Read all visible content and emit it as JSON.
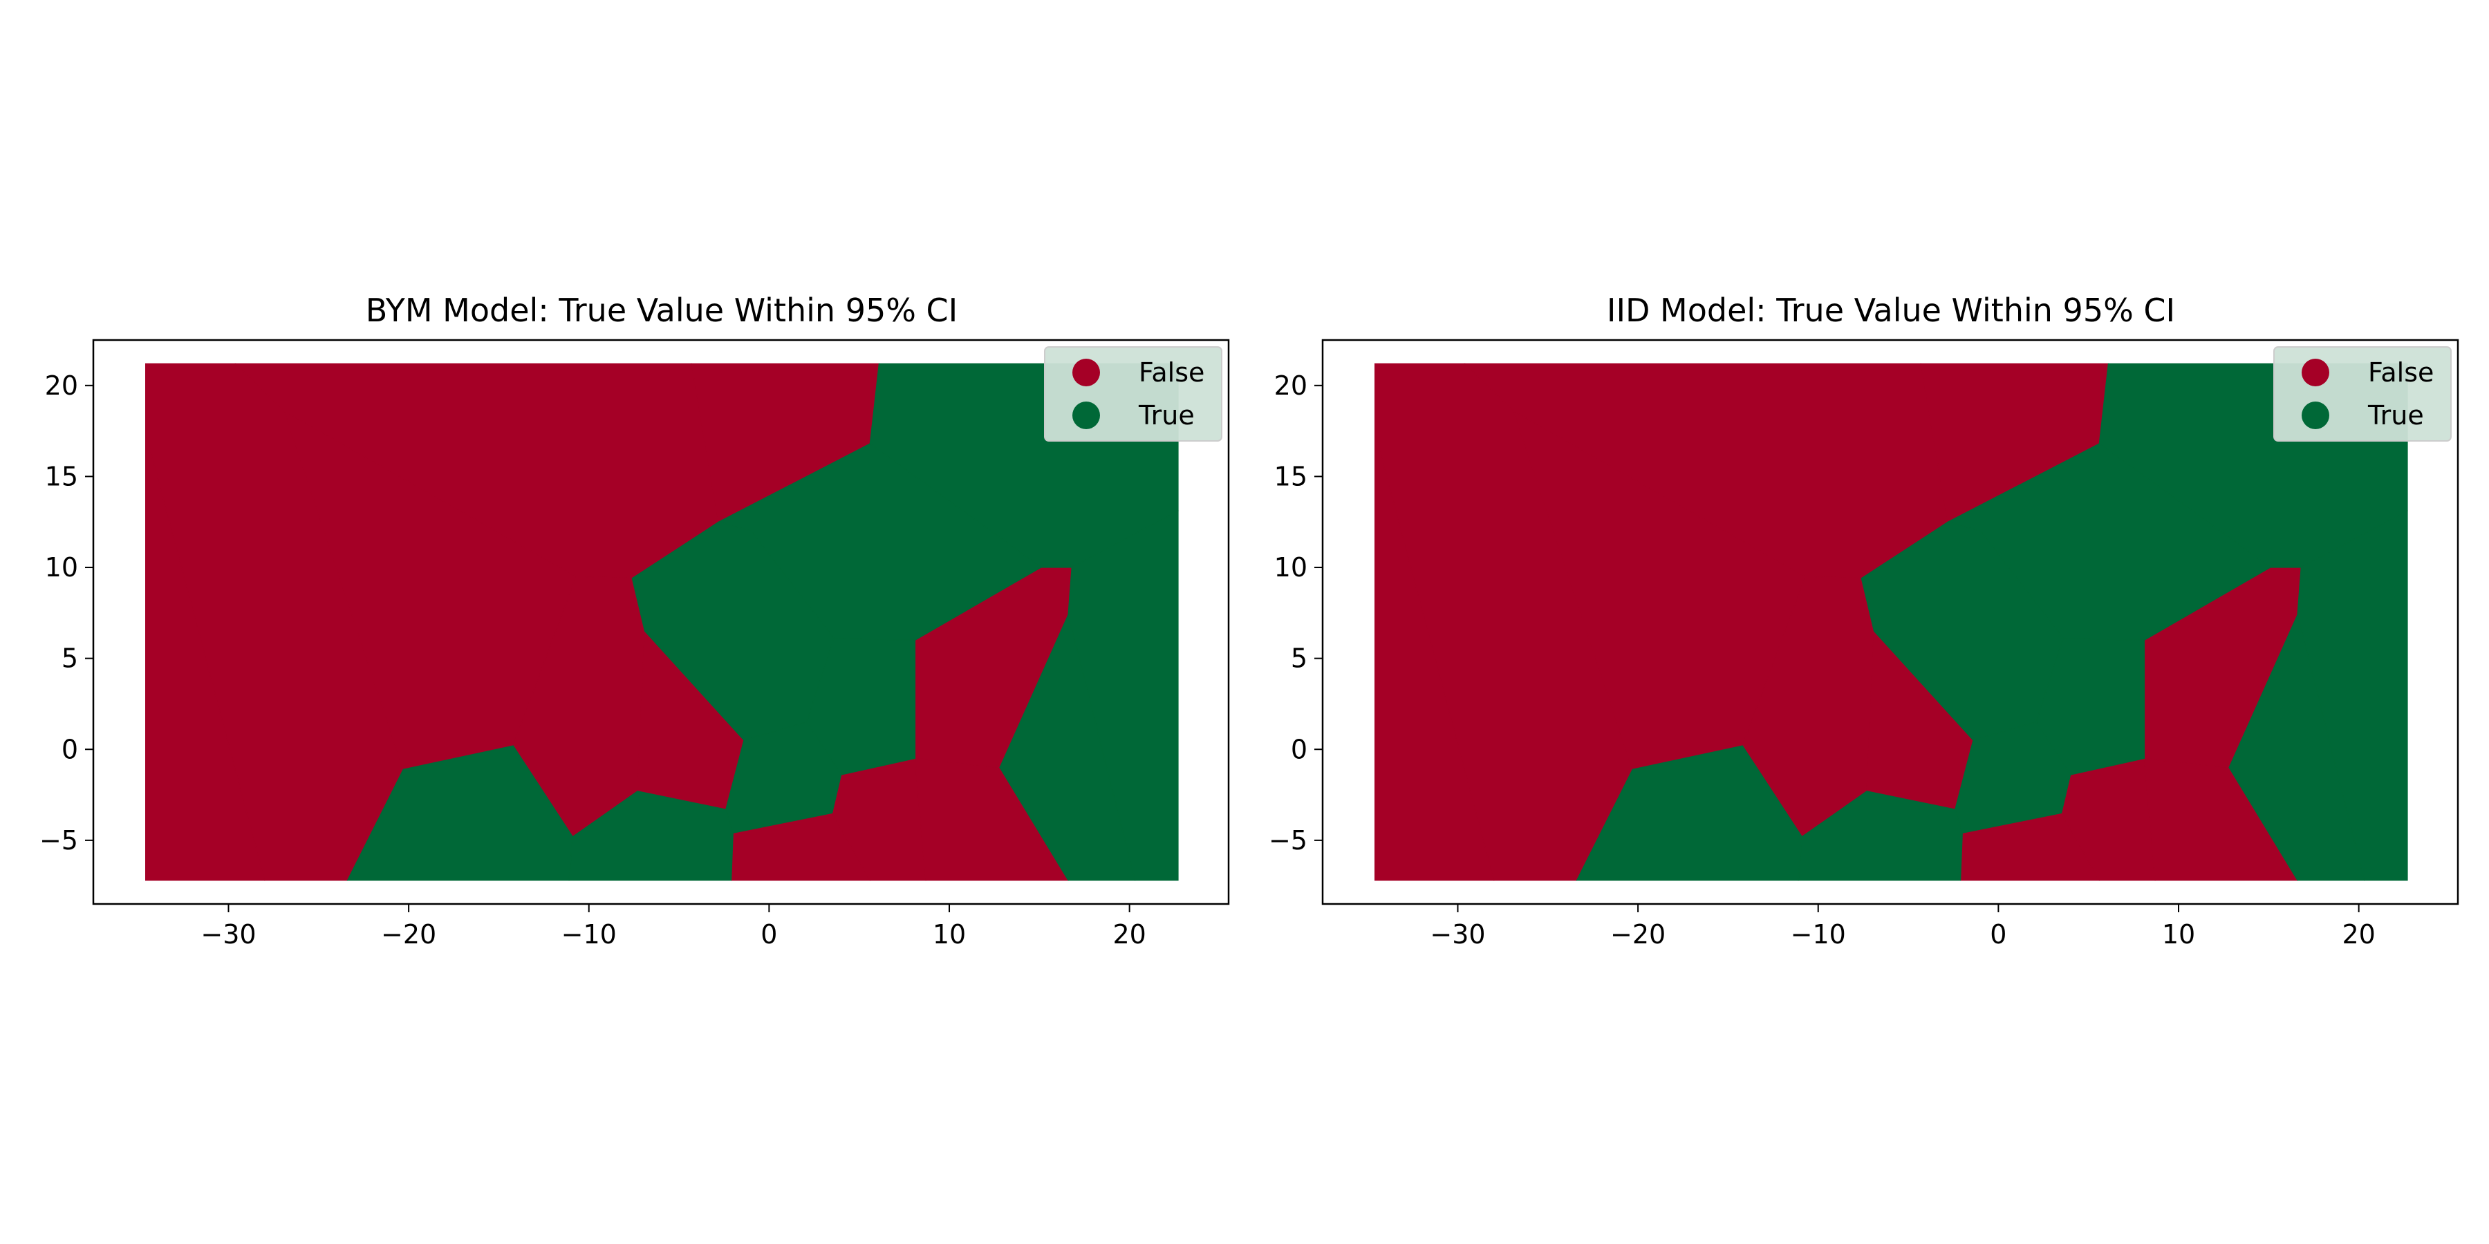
{
  "colors": {
    "false": "#a50026",
    "true": "#006837",
    "legend_bg": "#cde2d7"
  },
  "legend": {
    "items": [
      {
        "label": "False",
        "color_key": "false"
      },
      {
        "label": "True",
        "color_key": "true"
      }
    ]
  },
  "chart_data": [
    {
      "type": "voronoi-map",
      "title": "BYM Model: True Value Within 95% CI",
      "xlim": [
        -37.5,
        25.5
      ],
      "ylim": [
        -8.5,
        22.5
      ],
      "xticks": [
        -30,
        -20,
        -10,
        0,
        10,
        20
      ],
      "yticks": [
        -5,
        0,
        5,
        10,
        15,
        20
      ],
      "xtick_labels": [
        "−30",
        "−20",
        "−10",
        "0",
        "10",
        "20"
      ],
      "ytick_labels": [
        "−5",
        "0",
        "5",
        "10",
        "15",
        "20"
      ],
      "legend_position": "upper right",
      "regions": [
        {
          "value": false,
          "poly": [
            [
              -34.6,
              21.2
            ],
            [
              -29.6,
              21.2
            ],
            [
              -26.9,
              18.6
            ],
            [
              -20.3,
              -1.1
            ],
            [
              -23.4,
              -7.2
            ],
            [
              -28.0,
              -7.2
            ],
            [
              -34.6,
              17.4
            ]
          ]
        },
        {
          "value": false,
          "poly": [
            [
              -34.6,
              17.4
            ],
            [
              -28.0,
              -7.2
            ],
            [
              -34.6,
              -7.2
            ]
          ]
        },
        {
          "value": false,
          "poly": [
            [
              -26.9,
              18.6
            ],
            [
              -10.7,
              9.5
            ],
            [
              -14.2,
              0.2
            ],
            [
              -20.3,
              -1.1
            ]
          ]
        },
        {
          "value": false,
          "poly": [
            [
              -29.6,
              21.2
            ],
            [
              -4.3,
              21.2
            ],
            [
              -2.8,
              12.5
            ],
            [
              -7.6,
              9.4
            ],
            [
              -10.7,
              9.5
            ],
            [
              -26.9,
              18.6
            ]
          ]
        },
        {
          "value": false,
          "poly": [
            [
              -4.3,
              21.2
            ],
            [
              6.1,
              21.2
            ],
            [
              5.6,
              16.8
            ],
            [
              -2.8,
              12.5
            ]
          ]
        },
        {
          "value": false,
          "poly": [
            [
              -10.7,
              9.5
            ],
            [
              -7.6,
              9.4
            ],
            [
              -6.9,
              6.5
            ],
            [
              -7.3,
              -2.3
            ],
            [
              -10.9,
              -4.8
            ],
            [
              -14.2,
              0.2
            ]
          ]
        },
        {
          "value": false,
          "poly": [
            [
              -6.9,
              6.5
            ],
            [
              -1.4,
              0.5
            ],
            [
              -2.4,
              -3.3
            ],
            [
              -7.3,
              -2.3
            ]
          ]
        },
        {
          "value": false,
          "poly": [
            [
              -2.0,
              -4.6
            ],
            [
              3.5,
              -3.5
            ],
            [
              5.6,
              -7.2
            ],
            [
              -2.1,
              -7.2
            ]
          ]
        },
        {
          "value": false,
          "poly": [
            [
              3.5,
              -3.5
            ],
            [
              4.0,
              -1.4
            ],
            [
              8.1,
              -0.5
            ],
            [
              8.7,
              -7.2
            ],
            [
              5.6,
              -7.2
            ]
          ]
        },
        {
          "value": false,
          "poly": [
            [
              8.1,
              -0.5
            ],
            [
              12.8,
              -1.0
            ],
            [
              16.6,
              -7.2
            ],
            [
              8.7,
              -7.2
            ]
          ]
        },
        {
          "value": false,
          "poly": [
            [
              8.1,
              6.0
            ],
            [
              15.1,
              10.0
            ],
            [
              16.8,
              10.0
            ],
            [
              16.6,
              7.4
            ],
            [
              12.8,
              -1.0
            ],
            [
              8.1,
              -0.5
            ]
          ]
        },
        {
          "value": true,
          "poly": [
            [
              6.1,
              21.2
            ],
            [
              22.7,
              21.2
            ],
            [
              22.7,
              13.1
            ],
            [
              16.8,
              10.0
            ],
            [
              15.1,
              10.0
            ],
            [
              5.6,
              16.8
            ]
          ]
        },
        {
          "value": true,
          "poly": [
            [
              -2.8,
              12.5
            ],
            [
              5.6,
              16.8
            ],
            [
              15.1,
              10.0
            ],
            [
              8.1,
              6.0
            ],
            [
              3.6,
              6.1
            ],
            [
              -1.0,
              12.0
            ]
          ]
        },
        {
          "value": true,
          "poly": [
            [
              -7.6,
              9.4
            ],
            [
              -2.8,
              12.5
            ],
            [
              -1.0,
              12.0
            ],
            [
              3.6,
              6.1
            ],
            [
              2.1,
              1.5
            ],
            [
              -1.4,
              0.5
            ],
            [
              -6.9,
              6.5
            ]
          ]
        },
        {
          "value": true,
          "poly": [
            [
              3.6,
              6.1
            ],
            [
              8.1,
              6.0
            ],
            [
              8.1,
              -0.5
            ],
            [
              4.0,
              -1.4
            ],
            [
              2.1,
              1.5
            ]
          ]
        },
        {
          "value": true,
          "poly": [
            [
              -1.4,
              0.5
            ],
            [
              2.1,
              1.5
            ],
            [
              4.0,
              -1.4
            ],
            [
              3.5,
              -3.5
            ],
            [
              -2.0,
              -4.6
            ],
            [
              -2.4,
              -3.3
            ]
          ]
        },
        {
          "value": true,
          "poly": [
            [
              -10.9,
              -4.8
            ],
            [
              -7.3,
              -2.3
            ],
            [
              -2.4,
              -3.3
            ],
            [
              -2.0,
              -4.6
            ],
            [
              -2.1,
              -7.2
            ],
            [
              -11.1,
              -7.2
            ]
          ]
        },
        {
          "value": true,
          "poly": [
            [
              -20.3,
              -1.1
            ],
            [
              -14.2,
              0.2
            ],
            [
              -10.9,
              -4.8
            ],
            [
              -11.1,
              -7.2
            ],
            [
              -23.4,
              -7.2
            ]
          ]
        },
        {
          "value": true,
          "poly": [
            [
              16.8,
              10.0
            ],
            [
              22.7,
              13.1
            ],
            [
              22.7,
              -7.2
            ],
            [
              20.3,
              -7.2
            ],
            [
              16.6,
              7.4
            ]
          ]
        },
        {
          "value": true,
          "poly": [
            [
              16.6,
              7.4
            ],
            [
              20.3,
              -7.2
            ],
            [
              16.6,
              -7.2
            ],
            [
              12.8,
              -1.0
            ]
          ]
        }
      ]
    },
    {
      "type": "voronoi-map",
      "title": "IID Model: True Value Within 95% CI",
      "xlim": [
        -37.5,
        25.5
      ],
      "ylim": [
        -8.5,
        22.5
      ],
      "xticks": [
        -30,
        -20,
        -10,
        0,
        10,
        20
      ],
      "yticks": [
        -5,
        0,
        5,
        10,
        15,
        20
      ],
      "xtick_labels": [
        "−30",
        "−20",
        "−10",
        "0",
        "10",
        "20"
      ],
      "ytick_labels": [
        "−5",
        "0",
        "5",
        "10",
        "15",
        "20"
      ],
      "legend_position": "upper right",
      "regions": [
        {
          "value": false,
          "poly": [
            [
              -34.6,
              21.2
            ],
            [
              -29.6,
              21.2
            ],
            [
              -26.9,
              18.6
            ],
            [
              -20.3,
              -1.1
            ],
            [
              -23.4,
              -7.2
            ],
            [
              -28.0,
              -7.2
            ],
            [
              -34.6,
              17.4
            ]
          ]
        },
        {
          "value": false,
          "poly": [
            [
              -34.6,
              17.4
            ],
            [
              -28.0,
              -7.2
            ],
            [
              -34.6,
              -7.2
            ]
          ]
        },
        {
          "value": false,
          "poly": [
            [
              -26.9,
              18.6
            ],
            [
              -10.7,
              9.5
            ],
            [
              -14.2,
              0.2
            ],
            [
              -20.3,
              -1.1
            ]
          ]
        },
        {
          "value": false,
          "poly": [
            [
              -29.6,
              21.2
            ],
            [
              -4.3,
              21.2
            ],
            [
              -2.8,
              12.5
            ],
            [
              -7.6,
              9.4
            ],
            [
              -10.7,
              9.5
            ],
            [
              -26.9,
              18.6
            ]
          ]
        },
        {
          "value": false,
          "poly": [
            [
              -4.3,
              21.2
            ],
            [
              6.1,
              21.2
            ],
            [
              5.6,
              16.8
            ],
            [
              -2.8,
              12.5
            ]
          ]
        },
        {
          "value": false,
          "poly": [
            [
              -10.7,
              9.5
            ],
            [
              -7.6,
              9.4
            ],
            [
              -6.9,
              6.5
            ],
            [
              -7.3,
              -2.3
            ],
            [
              -10.9,
              -4.8
            ],
            [
              -14.2,
              0.2
            ]
          ]
        },
        {
          "value": false,
          "poly": [
            [
              -6.9,
              6.5
            ],
            [
              -1.4,
              0.5
            ],
            [
              -2.4,
              -3.3
            ],
            [
              -7.3,
              -2.3
            ]
          ]
        },
        {
          "value": false,
          "poly": [
            [
              -2.0,
              -4.6
            ],
            [
              3.5,
              -3.5
            ],
            [
              5.6,
              -7.2
            ],
            [
              -2.1,
              -7.2
            ]
          ]
        },
        {
          "value": false,
          "poly": [
            [
              3.5,
              -3.5
            ],
            [
              4.0,
              -1.4
            ],
            [
              8.1,
              -0.5
            ],
            [
              8.7,
              -7.2
            ],
            [
              5.6,
              -7.2
            ]
          ]
        },
        {
          "value": false,
          "poly": [
            [
              8.1,
              -0.5
            ],
            [
              12.8,
              -1.0
            ],
            [
              16.6,
              -7.2
            ],
            [
              8.7,
              -7.2
            ]
          ]
        },
        {
          "value": false,
          "poly": [
            [
              8.1,
              6.0
            ],
            [
              15.1,
              10.0
            ],
            [
              16.8,
              10.0
            ],
            [
              16.6,
              7.4
            ],
            [
              12.8,
              -1.0
            ],
            [
              8.1,
              -0.5
            ]
          ]
        },
        {
          "value": true,
          "poly": [
            [
              6.1,
              21.2
            ],
            [
              22.7,
              21.2
            ],
            [
              22.7,
              13.1
            ],
            [
              16.8,
              10.0
            ],
            [
              15.1,
              10.0
            ],
            [
              5.6,
              16.8
            ]
          ]
        },
        {
          "value": true,
          "poly": [
            [
              -2.8,
              12.5
            ],
            [
              5.6,
              16.8
            ],
            [
              15.1,
              10.0
            ],
            [
              8.1,
              6.0
            ],
            [
              3.6,
              6.1
            ],
            [
              -1.0,
              12.0
            ]
          ]
        },
        {
          "value": true,
          "poly": [
            [
              -7.6,
              9.4
            ],
            [
              -2.8,
              12.5
            ],
            [
              -1.0,
              12.0
            ],
            [
              3.6,
              6.1
            ],
            [
              2.1,
              1.5
            ],
            [
              -1.4,
              0.5
            ],
            [
              -6.9,
              6.5
            ]
          ]
        },
        {
          "value": true,
          "poly": [
            [
              3.6,
              6.1
            ],
            [
              8.1,
              6.0
            ],
            [
              8.1,
              -0.5
            ],
            [
              4.0,
              -1.4
            ],
            [
              2.1,
              1.5
            ]
          ]
        },
        {
          "value": true,
          "poly": [
            [
              -1.4,
              0.5
            ],
            [
              2.1,
              1.5
            ],
            [
              4.0,
              -1.4
            ],
            [
              3.5,
              -3.5
            ],
            [
              -2.0,
              -4.6
            ],
            [
              -2.4,
              -3.3
            ]
          ]
        },
        {
          "value": true,
          "poly": [
            [
              -10.9,
              -4.8
            ],
            [
              -7.3,
              -2.3
            ],
            [
              -2.4,
              -3.3
            ],
            [
              -2.0,
              -4.6
            ],
            [
              -2.1,
              -7.2
            ],
            [
              -11.1,
              -7.2
            ]
          ]
        },
        {
          "value": true,
          "poly": [
            [
              -20.3,
              -1.1
            ],
            [
              -14.2,
              0.2
            ],
            [
              -10.9,
              -4.8
            ],
            [
              -11.1,
              -7.2
            ],
            [
              -23.4,
              -7.2
            ]
          ]
        },
        {
          "value": true,
          "poly": [
            [
              16.8,
              10.0
            ],
            [
              22.7,
              13.1
            ],
            [
              22.7,
              -7.2
            ],
            [
              20.3,
              -7.2
            ],
            [
              16.6,
              7.4
            ]
          ]
        },
        {
          "value": true,
          "poly": [
            [
              16.6,
              7.4
            ],
            [
              20.3,
              -7.2
            ],
            [
              16.6,
              -7.2
            ],
            [
              12.8,
              -1.0
            ]
          ]
        }
      ]
    }
  ]
}
